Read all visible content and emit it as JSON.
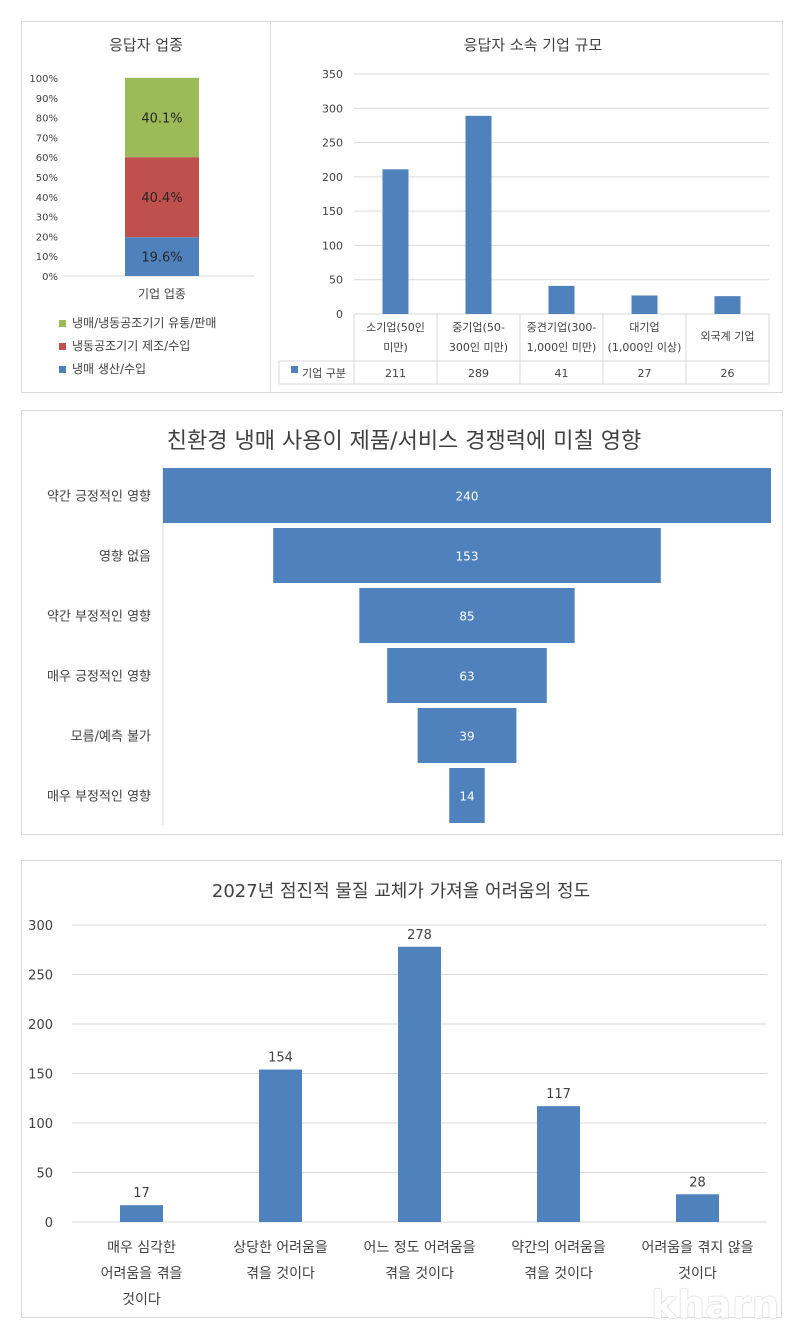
{
  "chart_data": [
    {
      "type": "bar",
      "stacked": true,
      "percent": true,
      "title": "응답자 업종",
      "categories": [
        "기업 업종"
      ],
      "series": [
        {
          "name": "냉매 생산/수입",
          "values": [
            19.6
          ],
          "label": "19.6%",
          "color": "#4f81bd"
        },
        {
          "name": "냉동공조기기 제조/수입",
          "values": [
            40.4
          ],
          "label": "40.4%",
          "color": "#c0504d"
        },
        {
          "name": "냉매/냉동공조기기 유통/판매",
          "values": [
            40.1
          ],
          "label": "40.1%",
          "color": "#9bbb59"
        }
      ],
      "legend_order": [
        "냉매/냉동공조기기 유통/판매",
        "냉동공조기기 제조/수입",
        "냉매 생산/수입"
      ],
      "yticks": [
        "0%",
        "10%",
        "20%",
        "30%",
        "40%",
        "50%",
        "60%",
        "70%",
        "80%",
        "90%",
        "100%"
      ],
      "ylim": [
        0,
        100
      ],
      "legend": "bottom",
      "grid": false
    },
    {
      "type": "bar",
      "title": "응답자 소속 기업 규모",
      "categories": [
        [
          "소기업(50인",
          "미만)"
        ],
        [
          "중기업(50-",
          "300인 미만)"
        ],
        [
          "중견기업(300-",
          "1,000인 미만)"
        ],
        [
          "대기업",
          "(1,000인 이상)"
        ],
        [
          "외국계 기업"
        ]
      ],
      "series": [
        {
          "name": "기업 구분",
          "values": [
            211,
            289,
            41,
            27,
            26
          ]
        }
      ],
      "table_values": [
        "211",
        "289",
        "41",
        "27",
        "26"
      ],
      "yticks": [
        "0",
        "50",
        "100",
        "150",
        "200",
        "250",
        "300",
        "350"
      ],
      "ylim": [
        0,
        350
      ],
      "grid": true,
      "color": "#4f81bd",
      "legend": "data-table"
    },
    {
      "type": "bar",
      "orientation": "horizontal",
      "style": "funnel",
      "title": "친환경 냉매 사용이 제품/서비스 경쟁력에 미칠 영향",
      "categories": [
        "약간 긍정적인 영향",
        "영향 없음",
        "약간 부정적인 영향",
        "매우 긍정적인 영향",
        "모름/예측 불가",
        "매우 부정적인 영향"
      ],
      "values": [
        240,
        153,
        85,
        63,
        39,
        14
      ],
      "value_labels": [
        "240",
        "153",
        "85",
        "63",
        "39",
        "14"
      ],
      "color": "#4f81bd"
    },
    {
      "type": "bar",
      "title": "2027년 점진적 물질 교체가 가져올 어려움의 정도",
      "categories": [
        [
          "매우 심각한",
          "어려움을 겪을",
          "것이다"
        ],
        [
          "상당한 어려움을",
          "겪을 것이다"
        ],
        [
          "어느 정도 어려움을",
          "겪을 것이다"
        ],
        [
          "약간의 어려움을",
          "겪을 것이다"
        ],
        [
          "어려움을 겪지 않을",
          "것이다"
        ]
      ],
      "values": [
        17,
        154,
        278,
        117,
        28
      ],
      "value_labels": [
        "17",
        "154",
        "278",
        "117",
        "28"
      ],
      "yticks": [
        "0",
        "50",
        "100",
        "150",
        "200",
        "250",
        "300"
      ],
      "ylim": [
        0,
        300
      ],
      "grid": true,
      "color": "#4f81bd"
    }
  ],
  "watermark": "kharn"
}
